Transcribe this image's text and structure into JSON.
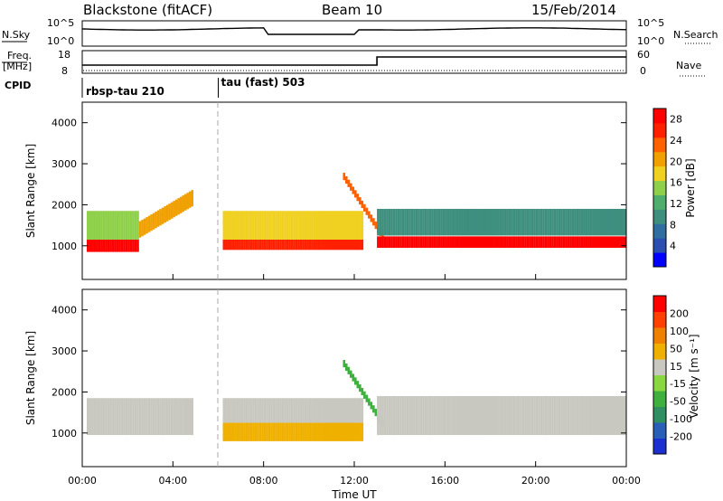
{
  "header": {
    "station": "Blackstone (fitACF)",
    "beam": "Beam 10",
    "date": "15/Feb/2014"
  },
  "top_panels": {
    "nsky_label": "N.Sky",
    "nsky_ticks": [
      "10^5",
      "10^0"
    ],
    "nsearch_label": "N.Search",
    "nsearch_ticks": [
      "10^5",
      "10^0"
    ],
    "freq_label": "Freq.",
    "freq_unit": "[MHz]",
    "freq_ticks": [
      "18",
      "8"
    ],
    "nave_label": "Nave",
    "nave_ticks": [
      "60",
      "0"
    ],
    "cpid_label": "CPID",
    "cpid_segments": [
      {
        "label": "rbsp-tau 210",
        "start_hour": 0
      },
      {
        "label": "tau (fast) 503",
        "start_hour": 6
      }
    ],
    "nave_step_hour": 13
  },
  "colors": {
    "power_scale": [
      "#0000ff",
      "#2a4fb0",
      "#2f6fa0",
      "#3f8f7f",
      "#4fae6c",
      "#8fd04a",
      "#f0d020",
      "#f0a000",
      "#ff6000",
      "#ff2000",
      "#ff0000"
    ],
    "velocity_scale": [
      "#1c2fd0",
      "#2a5fb8",
      "#2f8f60",
      "#3fb040",
      "#8ad840",
      "#c8c8c0",
      "#f0b000",
      "#f08000",
      "#ff4000",
      "#ff0000"
    ]
  },
  "chart_data": [
    {
      "type": "heatmap",
      "panel": "power",
      "xlabel": "Time UT",
      "ylabel": "Slant Range [km]",
      "xlim_hours": [
        0,
        24
      ],
      "x_ticks": [
        "00:00",
        "04:00",
        "08:00",
        "12:00",
        "16:00",
        "20:00",
        "00:00"
      ],
      "ylim": [
        180,
        4500
      ],
      "y_ticks": [
        1000,
        2000,
        3000,
        4000
      ],
      "colorbar_label": "Power [dB]",
      "colorbar_ticks": [
        4,
        8,
        12,
        16,
        20,
        24,
        28
      ],
      "colorbar_range": [
        0,
        30
      ]
    },
    {
      "type": "heatmap",
      "panel": "velocity",
      "xlabel": "Time UT",
      "ylabel": "Slant Range [km]",
      "xlim_hours": [
        0,
        24
      ],
      "x_ticks": [
        "00:00",
        "04:00",
        "08:00",
        "12:00",
        "16:00",
        "20:00",
        "00:00"
      ],
      "ylim": [
        180,
        4500
      ],
      "y_ticks": [
        1000,
        2000,
        3000,
        4000
      ],
      "colorbar_label": "Velocity [m s⁻¹]",
      "colorbar_ticks": [
        200,
        100,
        50,
        15,
        -15,
        -50,
        -100,
        -200
      ]
    }
  ]
}
